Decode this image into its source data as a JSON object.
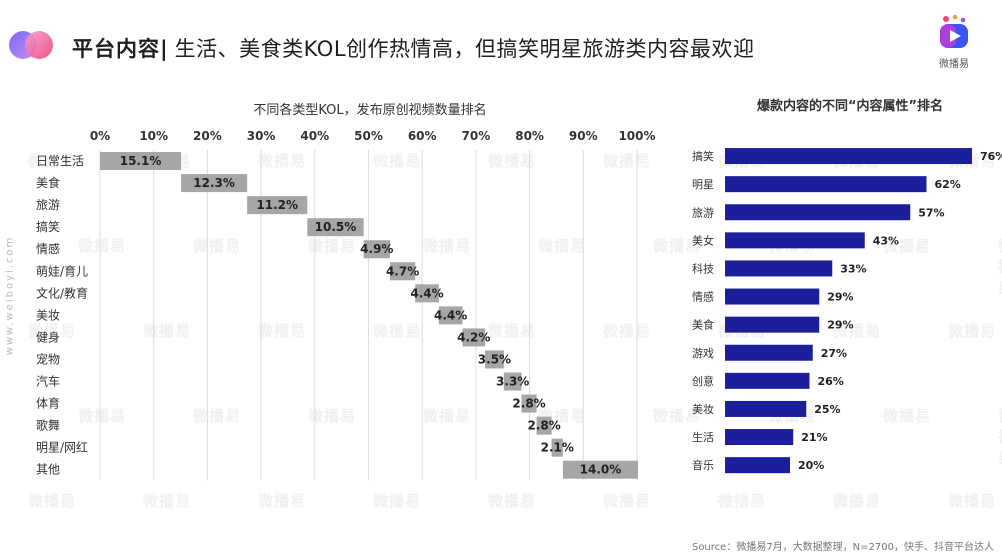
{
  "header": {
    "title_main": "平台内容|",
    "title_sub": "生活、美食类KOL创作热情高，但搞笑明星旅游类内容最欢迎"
  },
  "brand": {
    "name": "微播易"
  },
  "side_text": "www.weiboyi.com",
  "watermark_text": "微播易",
  "source": "Source：微播易7月，大数据整理，N=2700，快手、抖音平台达人",
  "colors": {
    "waterfall_bar": "#a6a6a6",
    "ranking_bar": "#1c1f9c",
    "grid": "#dddddd"
  },
  "chart_data": [
    {
      "type": "bar",
      "subtype": "waterfall",
      "title": "不同各类型KOL，发布原创视频数量排名",
      "categories": [
        "日常生活",
        "美食",
        "旅游",
        "搞笑",
        "情感",
        "萌娃/育儿",
        "文化/教育",
        "美妆",
        "健身",
        "宠物",
        "汽车",
        "体育",
        "歌舞",
        "明星/网红",
        "其他"
      ],
      "values": [
        15.1,
        12.3,
        11.2,
        10.5,
        4.9,
        4.7,
        4.4,
        4.4,
        4.2,
        3.5,
        3.3,
        2.8,
        2.8,
        2.1,
        14.0
      ],
      "value_labels": [
        "15.1%",
        "12.3%",
        "11.2%",
        "10.5%",
        "4.9%",
        "4.7%",
        "4.4%",
        "4.4%",
        "4.2%",
        "3.5%",
        "3.3%",
        "2.8%",
        "2.8%",
        "2.1%",
        "14.0%"
      ],
      "x_ticks": [
        "0%",
        "10%",
        "20%",
        "30%",
        "40%",
        "50%",
        "60%",
        "70%",
        "80%",
        "90%",
        "100%"
      ],
      "xlim": [
        0,
        100
      ],
      "axis_position": "top",
      "grid": true
    },
    {
      "type": "bar",
      "orientation": "horizontal",
      "title": "爆款内容的不同“内容属性”排名",
      "categories": [
        "搞笑",
        "明星",
        "旅游",
        "美女",
        "科技",
        "情感",
        "美食",
        "游戏",
        "创意",
        "美妆",
        "生活",
        "音乐"
      ],
      "values": [
        76,
        62,
        57,
        43,
        33,
        29,
        29,
        27,
        26,
        25,
        21,
        20
      ],
      "value_labels": [
        "76%",
        "62%",
        "57%",
        "43%",
        "33%",
        "29%",
        "29%",
        "27%",
        "26%",
        "25%",
        "21%",
        "20%"
      ],
      "xlim": [
        0,
        80
      ],
      "grid": false
    }
  ]
}
